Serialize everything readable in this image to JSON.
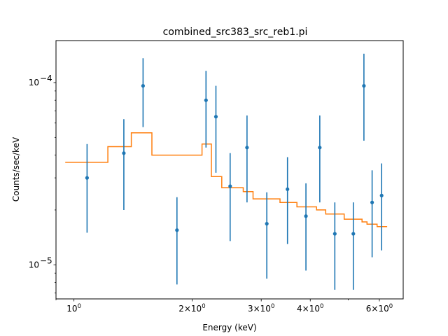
{
  "chart_data": {
    "type": "scatter",
    "title": "combined_src383_src_reb1.pi",
    "xlabel": "Energy (keV)",
    "ylabel": "Counts/sec/keV",
    "xscale": "log",
    "yscale": "log",
    "xlim": [
      0.9,
      6.9
    ],
    "ylim": [
      6.5e-06,
      0.00017
    ],
    "grid": false,
    "x_ticks": [
      {
        "value": 1,
        "label": "10",
        "exp": "0"
      },
      {
        "value": 2,
        "label": "2×10",
        "exp": "0"
      },
      {
        "value": 3,
        "label": "3×10",
        "exp": "0"
      },
      {
        "value": 4,
        "label": "4×10",
        "exp": "0"
      },
      {
        "value": 6,
        "label": "6×10",
        "exp": "0"
      }
    ],
    "y_ticks": [
      {
        "value": 1e-05,
        "label": "10",
        "exp": "−5"
      },
      {
        "value": 0.0001,
        "label": "10",
        "exp": "−4"
      }
    ],
    "data_color": "#1f77b4",
    "model_color": "#ff7f0e",
    "series": [
      {
        "kind": "errorbar",
        "points": [
          {
            "x": 1.08,
            "y": 3e-05,
            "ylo": 1.5e-05,
            "yhi": 4.6e-05
          },
          {
            "x": 1.34,
            "y": 4.1e-05,
            "ylo": 2e-05,
            "yhi": 6.3e-05
          },
          {
            "x": 1.5,
            "y": 9.6e-05,
            "ylo": 5.7e-05,
            "yhi": 0.000136
          },
          {
            "x": 1.83,
            "y": 1.55e-05,
            "ylo": 7.8e-06,
            "yhi": 2.35e-05
          },
          {
            "x": 2.17,
            "y": 8e-05,
            "ylo": 4.4e-05,
            "yhi": 0.000116
          },
          {
            "x": 2.3,
            "y": 6.5e-05,
            "ylo": 3.2e-05,
            "yhi": 9.6e-05
          },
          {
            "x": 2.5,
            "y": 2.7e-05,
            "ylo": 1.35e-05,
            "yhi": 4.1e-05
          },
          {
            "x": 2.76,
            "y": 4.4e-05,
            "ylo": 2.2e-05,
            "yhi": 6.6e-05
          },
          {
            "x": 3.1,
            "y": 1.68e-05,
            "ylo": 8.4e-06,
            "yhi": 2.5e-05
          },
          {
            "x": 3.5,
            "y": 2.6e-05,
            "ylo": 1.3e-05,
            "yhi": 3.9e-05
          },
          {
            "x": 3.9,
            "y": 1.85e-05,
            "ylo": 9.3e-06,
            "yhi": 2.8e-05
          },
          {
            "x": 4.23,
            "y": 4.4e-05,
            "ylo": 2.2e-05,
            "yhi": 6.6e-05
          },
          {
            "x": 4.62,
            "y": 1.48e-05,
            "ylo": 7.3e-06,
            "yhi": 2.2e-05
          },
          {
            "x": 5.15,
            "y": 1.48e-05,
            "ylo": 7.3e-06,
            "yhi": 2.2e-05
          },
          {
            "x": 5.48,
            "y": 9.6e-05,
            "ylo": 4.8e-05,
            "yhi": 0.000144
          },
          {
            "x": 5.75,
            "y": 2.2e-05,
            "ylo": 1.1e-05,
            "yhi": 3.3e-05
          },
          {
            "x": 6.08,
            "y": 2.4e-05,
            "ylo": 1.2e-05,
            "yhi": 3.6e-05
          }
        ]
      },
      {
        "kind": "step",
        "points": [
          {
            "x0": 0.95,
            "x1": 1.22,
            "y": 3.65e-05
          },
          {
            "x0": 1.22,
            "x1": 1.4,
            "y": 4.45e-05
          },
          {
            "x0": 1.4,
            "x1": 1.58,
            "y": 5.3e-05
          },
          {
            "x0": 1.58,
            "x1": 2.12,
            "y": 4e-05
          },
          {
            "x0": 2.12,
            "x1": 2.24,
            "y": 4.6e-05
          },
          {
            "x0": 2.24,
            "x1": 2.38,
            "y": 3.05e-05
          },
          {
            "x0": 2.38,
            "x1": 2.7,
            "y": 2.65e-05
          },
          {
            "x0": 2.7,
            "x1": 2.86,
            "y": 2.52e-05
          },
          {
            "x0": 2.86,
            "x1": 3.35,
            "y": 2.3e-05
          },
          {
            "x0": 3.35,
            "x1": 3.7,
            "y": 2.2e-05
          },
          {
            "x0": 3.7,
            "x1": 4.15,
            "y": 2.08e-05
          },
          {
            "x0": 4.15,
            "x1": 4.38,
            "y": 2e-05
          },
          {
            "x0": 4.38,
            "x1": 4.88,
            "y": 1.9e-05
          },
          {
            "x0": 4.88,
            "x1": 5.42,
            "y": 1.78e-05
          },
          {
            "x0": 5.42,
            "x1": 5.58,
            "y": 1.72e-05
          },
          {
            "x0": 5.58,
            "x1": 5.92,
            "y": 1.67e-05
          },
          {
            "x0": 5.92,
            "x1": 6.28,
            "y": 1.62e-05
          }
        ]
      }
    ]
  }
}
